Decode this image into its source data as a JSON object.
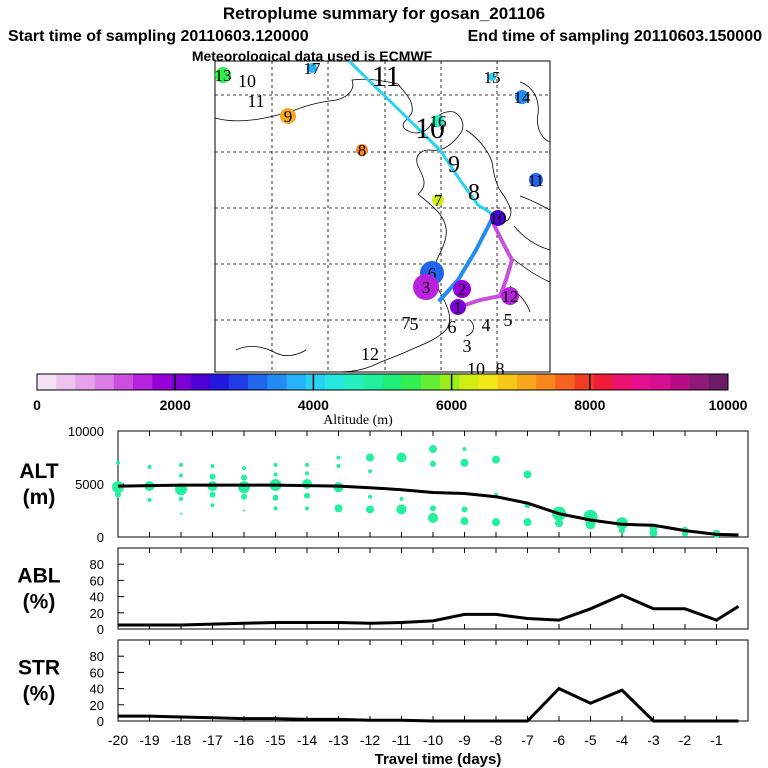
{
  "header": {
    "title": "Retroplume summary for gosan_201106",
    "start_label": "Start time of sampling 20110603.120000",
    "end_label": "End time of sampling 20110603.150000",
    "met_label": "Meteorological data used is ECMWF"
  },
  "colorbar": {
    "colors": [
      "#f6e2f6",
      "#eec3ef",
      "#e6a1ea",
      "#dc80e5",
      "#cb4fdf",
      "#b821dd",
      "#9800d9",
      "#7a00d6",
      "#4f00d9",
      "#2418e0",
      "#1f3ce6",
      "#2164ee",
      "#238cf4",
      "#25b2f7",
      "#27d3f5",
      "#26e8e0",
      "#24f0c0",
      "#22f09c",
      "#1ff079",
      "#33ef51",
      "#63ee35",
      "#9bee1e",
      "#d0ee14",
      "#f2e716",
      "#f7c818",
      "#f8a81a",
      "#f8871d",
      "#f6621f",
      "#f13e22",
      "#ee1c3a",
      "#ec1270",
      "#e60f92",
      "#d60d95",
      "#b70b87",
      "#8e1978",
      "#6a1d66"
    ],
    "ticks": [
      0,
      2000,
      4000,
      6000,
      8000,
      10000
    ],
    "label": "Altitude (m)"
  },
  "map": {
    "num_labels": [
      {
        "t": "11",
        "cls": "big"
      },
      {
        "t": "10",
        "cls": "big"
      },
      {
        "t": "9",
        "cls": "mid"
      },
      {
        "t": "8",
        "cls": "mid"
      },
      {
        "t": "10",
        "cls": "sm"
      },
      {
        "t": "11",
        "cls": "sm"
      },
      {
        "t": "7",
        "cls": "sm"
      },
      {
        "t": "12",
        "cls": "sm"
      },
      {
        "t": "5",
        "cls": "sm"
      },
      {
        "t": "6",
        "cls": "sm"
      },
      {
        "t": "4",
        "cls": "sm"
      },
      {
        "t": "5",
        "cls": "sm"
      },
      {
        "t": "3",
        "cls": "sm"
      },
      {
        "t": "10",
        "cls": "sm"
      },
      {
        "t": "8",
        "cls": "sm"
      }
    ],
    "markers": [
      {
        "t": "13",
        "c": "#33ef51"
      },
      {
        "t": "17",
        "c": "#25b2f7"
      },
      {
        "t": "15",
        "c": "#27d3f5"
      },
      {
        "t": "14",
        "c": "#238cf4"
      },
      {
        "t": "9",
        "c": "#f8a81a"
      },
      {
        "t": "16",
        "c": "#24f0c0"
      },
      {
        "t": "8",
        "c": "#f8871d"
      },
      {
        "t": "11",
        "c": "#2164ee"
      },
      {
        "t": "7",
        "c": "#d0ee14"
      },
      {
        "t": "10",
        "c": "#4f00d9"
      },
      {
        "t": "6",
        "c": "#2164ee"
      },
      {
        "t": "12",
        "c": "#b821dd"
      },
      {
        "t": "3",
        "c": "#b821dd"
      },
      {
        "t": "2",
        "c": "#9800d9"
      },
      {
        "t": "1",
        "c": "#7a00d6"
      }
    ]
  },
  "chart_data": [
    {
      "type": "scatter",
      "title": "ALT (m)",
      "panel_label_1": "ALT",
      "panel_label_2": "(m)",
      "ylim": [
        0,
        10000
      ],
      "yticks": [
        0,
        5000,
        10000
      ],
      "xlim": [
        -20,
        0
      ],
      "point_color": "#22f09c",
      "median": {
        "x": [
          -20,
          -19,
          -18,
          -17,
          -16,
          -15,
          -14,
          -13,
          -12,
          -11,
          -10,
          -9,
          -8,
          -7,
          -6,
          -5,
          -4,
          -3,
          -2,
          -1,
          -0.3
        ],
        "y": [
          4800,
          4850,
          4900,
          4900,
          4900,
          4900,
          4850,
          4800,
          4650,
          4450,
          4200,
          4100,
          3800,
          3200,
          2200,
          1600,
          1200,
          1100,
          600,
          250,
          200
        ]
      },
      "points": [
        {
          "x": -20,
          "y": 7000,
          "s": 2
        },
        {
          "x": -20,
          "y": 4700,
          "s": 6
        },
        {
          "x": -20,
          "y": 4000,
          "s": 3
        },
        {
          "x": -19,
          "y": 6600,
          "s": 2
        },
        {
          "x": -19,
          "y": 4800,
          "s": 5
        },
        {
          "x": -19,
          "y": 3500,
          "s": 2
        },
        {
          "x": -18,
          "y": 6800,
          "s": 2
        },
        {
          "x": -18,
          "y": 5800,
          "s": 2
        },
        {
          "x": -18,
          "y": 4500,
          "s": 6
        },
        {
          "x": -18,
          "y": 3600,
          "s": 2
        },
        {
          "x": -18,
          "y": 2200,
          "s": 1
        },
        {
          "x": -17,
          "y": 6700,
          "s": 2
        },
        {
          "x": -17,
          "y": 5700,
          "s": 3
        },
        {
          "x": -17,
          "y": 4800,
          "s": 5
        },
        {
          "x": -17,
          "y": 4000,
          "s": 3
        },
        {
          "x": -17,
          "y": 3000,
          "s": 2
        },
        {
          "x": -16,
          "y": 6500,
          "s": 2
        },
        {
          "x": -16,
          "y": 5600,
          "s": 3
        },
        {
          "x": -16,
          "y": 4700,
          "s": 6
        },
        {
          "x": -16,
          "y": 3800,
          "s": 3
        },
        {
          "x": -16,
          "y": 2500,
          "s": 1
        },
        {
          "x": -15,
          "y": 6800,
          "s": 2
        },
        {
          "x": -15,
          "y": 5900,
          "s": 2
        },
        {
          "x": -15,
          "y": 4900,
          "s": 6
        },
        {
          "x": -15,
          "y": 3700,
          "s": 3
        },
        {
          "x": -15,
          "y": 2700,
          "s": 2
        },
        {
          "x": -14,
          "y": 6800,
          "s": 2
        },
        {
          "x": -14,
          "y": 6000,
          "s": 2
        },
        {
          "x": -14,
          "y": 5000,
          "s": 5
        },
        {
          "x": -14,
          "y": 3900,
          "s": 3
        },
        {
          "x": -14,
          "y": 2700,
          "s": 2
        },
        {
          "x": -13,
          "y": 7500,
          "s": 2
        },
        {
          "x": -13,
          "y": 6700,
          "s": 2
        },
        {
          "x": -13,
          "y": 4700,
          "s": 5
        },
        {
          "x": -13,
          "y": 2700,
          "s": 4
        },
        {
          "x": -12,
          "y": 7500,
          "s": 4
        },
        {
          "x": -12,
          "y": 6200,
          "s": 2
        },
        {
          "x": -12,
          "y": 3800,
          "s": 2
        },
        {
          "x": -12,
          "y": 2600,
          "s": 4
        },
        {
          "x": -11,
          "y": 7500,
          "s": 5
        },
        {
          "x": -11,
          "y": 3600,
          "s": 2
        },
        {
          "x": -11,
          "y": 2600,
          "s": 5
        },
        {
          "x": -10,
          "y": 8300,
          "s": 4
        },
        {
          "x": -10,
          "y": 6900,
          "s": 3
        },
        {
          "x": -10,
          "y": 2700,
          "s": 3
        },
        {
          "x": -10,
          "y": 1800,
          "s": 5
        },
        {
          "x": -9,
          "y": 8300,
          "s": 2
        },
        {
          "x": -9,
          "y": 7000,
          "s": 4
        },
        {
          "x": -9,
          "y": 2600,
          "s": 3
        },
        {
          "x": -9,
          "y": 1500,
          "s": 4
        },
        {
          "x": -8,
          "y": 7300,
          "s": 4
        },
        {
          "x": -8,
          "y": 4000,
          "s": 2
        },
        {
          "x": -8,
          "y": 1400,
          "s": 4
        },
        {
          "x": -7,
          "y": 5900,
          "s": 4
        },
        {
          "x": -7,
          "y": 3000,
          "s": 3
        },
        {
          "x": -7,
          "y": 1400,
          "s": 4
        },
        {
          "x": -6,
          "y": 2200,
          "s": 7
        },
        {
          "x": -6,
          "y": 1300,
          "s": 4
        },
        {
          "x": -5,
          "y": 1900,
          "s": 7
        },
        {
          "x": -5,
          "y": 1200,
          "s": 5
        },
        {
          "x": -4,
          "y": 1300,
          "s": 6
        },
        {
          "x": -4,
          "y": 600,
          "s": 3
        },
        {
          "x": -3,
          "y": 900,
          "s": 4
        },
        {
          "x": -3,
          "y": 400,
          "s": 4
        },
        {
          "x": -2,
          "y": 700,
          "s": 3
        },
        {
          "x": -2,
          "y": 300,
          "s": 3
        },
        {
          "x": -1,
          "y": 300,
          "s": 4
        }
      ]
    },
    {
      "type": "line",
      "title": "ABL (%)",
      "panel_label_1": "ABL",
      "panel_label_2": "(%)",
      "ylim": [
        0,
        100
      ],
      "yticks": [
        0,
        20,
        40,
        60,
        80
      ],
      "xlim": [
        -20,
        0
      ],
      "x": [
        -20,
        -19,
        -18,
        -17,
        -16,
        -15,
        -14,
        -13,
        -12,
        -11,
        -10,
        -9,
        -8,
        -7,
        -6,
        -5,
        -4,
        -3,
        -2,
        -1,
        -0.3
      ],
      "y": [
        5,
        5,
        5,
        6,
        7,
        8,
        8,
        8,
        7,
        8,
        10,
        18,
        18,
        13,
        11,
        25,
        42,
        25,
        25,
        11,
        28
      ]
    },
    {
      "type": "line",
      "title": "STR (%)",
      "panel_label_1": "STR",
      "panel_label_2": "(%)",
      "ylim": [
        0,
        100
      ],
      "yticks": [
        0,
        20,
        40,
        60,
        80
      ],
      "xlim": [
        -20,
        0
      ],
      "xlabel": "Travel time (days)",
      "xticks": [
        -20,
        -19,
        -18,
        -17,
        -16,
        -15,
        -14,
        -13,
        -12,
        -11,
        -10,
        -9,
        -8,
        -7,
        -6,
        -5,
        -4,
        -3,
        -2,
        -1
      ],
      "x": [
        -20,
        -19,
        -18,
        -17,
        -16,
        -15,
        -14,
        -13,
        -12,
        -11,
        -10,
        -9,
        -8,
        -7,
        -6,
        -5,
        -4,
        -3,
        -2,
        -1,
        -0.3
      ],
      "y": [
        6,
        6,
        5,
        4,
        3,
        3,
        2,
        2,
        1,
        1,
        0,
        0,
        0,
        0,
        40,
        22,
        38,
        0,
        0,
        0,
        0
      ]
    }
  ]
}
